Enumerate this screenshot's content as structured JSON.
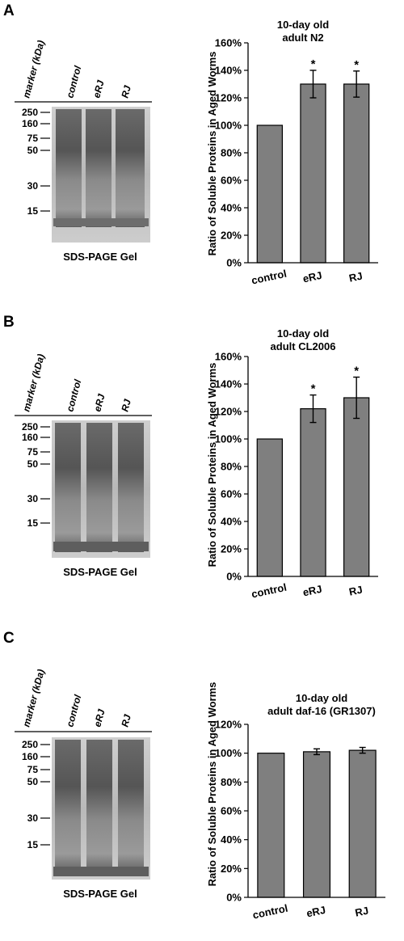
{
  "panels": [
    {
      "label": "A",
      "gel": {
        "lane_headers": [
          "marker (kDa)",
          "control",
          "eRJ",
          "RJ"
        ],
        "marker_labels": [
          "250",
          "160",
          "75",
          "50",
          "30",
          "15"
        ],
        "caption": "SDS-PAGE Gel"
      },
      "chart_data": {
        "type": "bar",
        "title_lines": [
          "10-day old",
          "adult N2"
        ],
        "categories": [
          "control",
          "eRJ",
          "RJ"
        ],
        "values": [
          100,
          130,
          130
        ],
        "errors": [
          0,
          10,
          9.5
        ],
        "significance": [
          "",
          "*",
          "*"
        ],
        "ylabel": "Ratio of Soluble Proteins in Aged Worms",
        "ylim": [
          0,
          160
        ],
        "yticks": [
          0,
          20,
          40,
          60,
          80,
          100,
          120,
          140,
          160
        ],
        "ytick_labels": [
          "0%",
          "20%",
          "40%",
          "60%",
          "80%",
          "100%",
          "120%",
          "140%",
          "160%"
        ],
        "grid": false,
        "bar_color": "#7f7f7f"
      }
    },
    {
      "label": "B",
      "gel": {
        "lane_headers": [
          "marker (kDa)",
          "control",
          "eRJ",
          "RJ"
        ],
        "marker_labels": [
          "250",
          "160",
          "75",
          "50",
          "30",
          "15"
        ],
        "caption": "SDS-PAGE Gel"
      },
      "chart_data": {
        "type": "bar",
        "title_lines": [
          "10-day old",
          "adult  CL2006"
        ],
        "categories": [
          "control",
          "eRJ",
          "RJ"
        ],
        "values": [
          100,
          122,
          130
        ],
        "errors": [
          0,
          10,
          15
        ],
        "significance": [
          "",
          "*",
          "*"
        ],
        "ylabel": "Ratio of Soluble Proteins in Aged Worms",
        "ylim": [
          0,
          160
        ],
        "yticks": [
          0,
          20,
          40,
          60,
          80,
          100,
          120,
          140,
          160
        ],
        "ytick_labels": [
          "0%",
          "20%",
          "40%",
          "60%",
          "80%",
          "100%",
          "120%",
          "140%",
          "160%"
        ],
        "grid": false,
        "bar_color": "#7f7f7f"
      }
    },
    {
      "label": "C",
      "gel": {
        "lane_headers": [
          "marker (kDa)",
          "control",
          "eRJ",
          "RJ"
        ],
        "marker_labels": [
          "250",
          "160",
          "75",
          "50",
          "30",
          "15"
        ],
        "caption": "SDS-PAGE Gel"
      },
      "chart_data": {
        "type": "bar",
        "title_lines": [
          "10-day old",
          "adult daf-16 (GR1307)"
        ],
        "categories": [
          "control",
          "eRJ",
          "RJ"
        ],
        "values": [
          100,
          101,
          102
        ],
        "errors": [
          0,
          2,
          2
        ],
        "significance": [
          "",
          "",
          ""
        ],
        "ylabel": "Ratio of Soluble Proteins in Aged Worms",
        "ylim": [
          0,
          120
        ],
        "yticks": [
          0,
          20,
          40,
          60,
          80,
          100,
          120
        ],
        "ytick_labels": [
          "0%",
          "20%",
          "40%",
          "60%",
          "80%",
          "100%",
          "120%"
        ],
        "grid": false,
        "bar_color": "#7f7f7f"
      }
    }
  ]
}
